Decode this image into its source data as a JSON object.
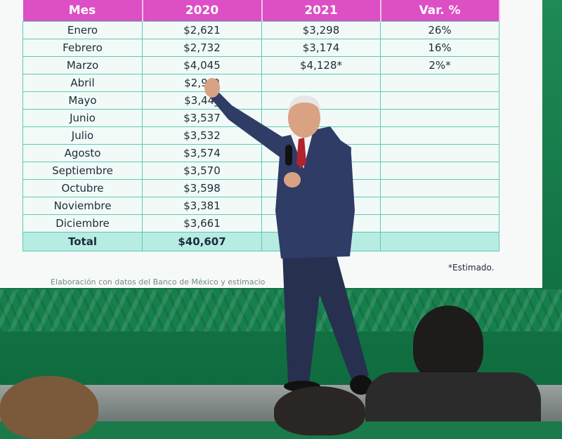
{
  "table": {
    "headers": [
      "Mes",
      "2020",
      "2021",
      "Var. %"
    ],
    "rows": [
      {
        "month": "Enero",
        "y2020": "$2,621",
        "y2021": "$3,298",
        "var": "26%"
      },
      {
        "month": "Febrero",
        "y2020": "$2,732",
        "y2021": "$3,174",
        "var": "16%"
      },
      {
        "month": "Marzo",
        "y2020": "$4,045",
        "y2021": "$4,128*",
        "var": "2%*"
      },
      {
        "month": "Abril",
        "y2020": "$2,9_0",
        "y2021": "",
        "var": ""
      },
      {
        "month": "Mayo",
        "y2020": "$3,44_",
        "y2021": "",
        "var": ""
      },
      {
        "month": "Junio",
        "y2020": "$3,537",
        "y2021": "",
        "var": ""
      },
      {
        "month": "Julio",
        "y2020": "$3,532",
        "y2021": "",
        "var": ""
      },
      {
        "month": "Agosto",
        "y2020": "$3,574",
        "y2021": "",
        "var": ""
      },
      {
        "month": "Septiembre",
        "y2020": "$3,570",
        "y2021": "",
        "var": ""
      },
      {
        "month": "Octubre",
        "y2020": "$3,598",
        "y2021": "",
        "var": ""
      },
      {
        "month": "Noviembre",
        "y2020": "$3,381",
        "y2021": "",
        "var": ""
      },
      {
        "month": "Diciembre",
        "y2020": "$3,661",
        "y2021": "",
        "var": ""
      }
    ],
    "total": {
      "month": "Total",
      "y2020": "$40,607",
      "y2021": "",
      "var": ""
    }
  },
  "notes": {
    "estimated": "*Estimado.",
    "source": "Elaboración con datos del Banco de México y estimacio"
  },
  "colors": {
    "header": "#dd4fc4",
    "grid": "#5cc9b8",
    "total_row": "#b7ece3",
    "backdrop_green": "#16804c",
    "suit": "#2f3c66"
  }
}
